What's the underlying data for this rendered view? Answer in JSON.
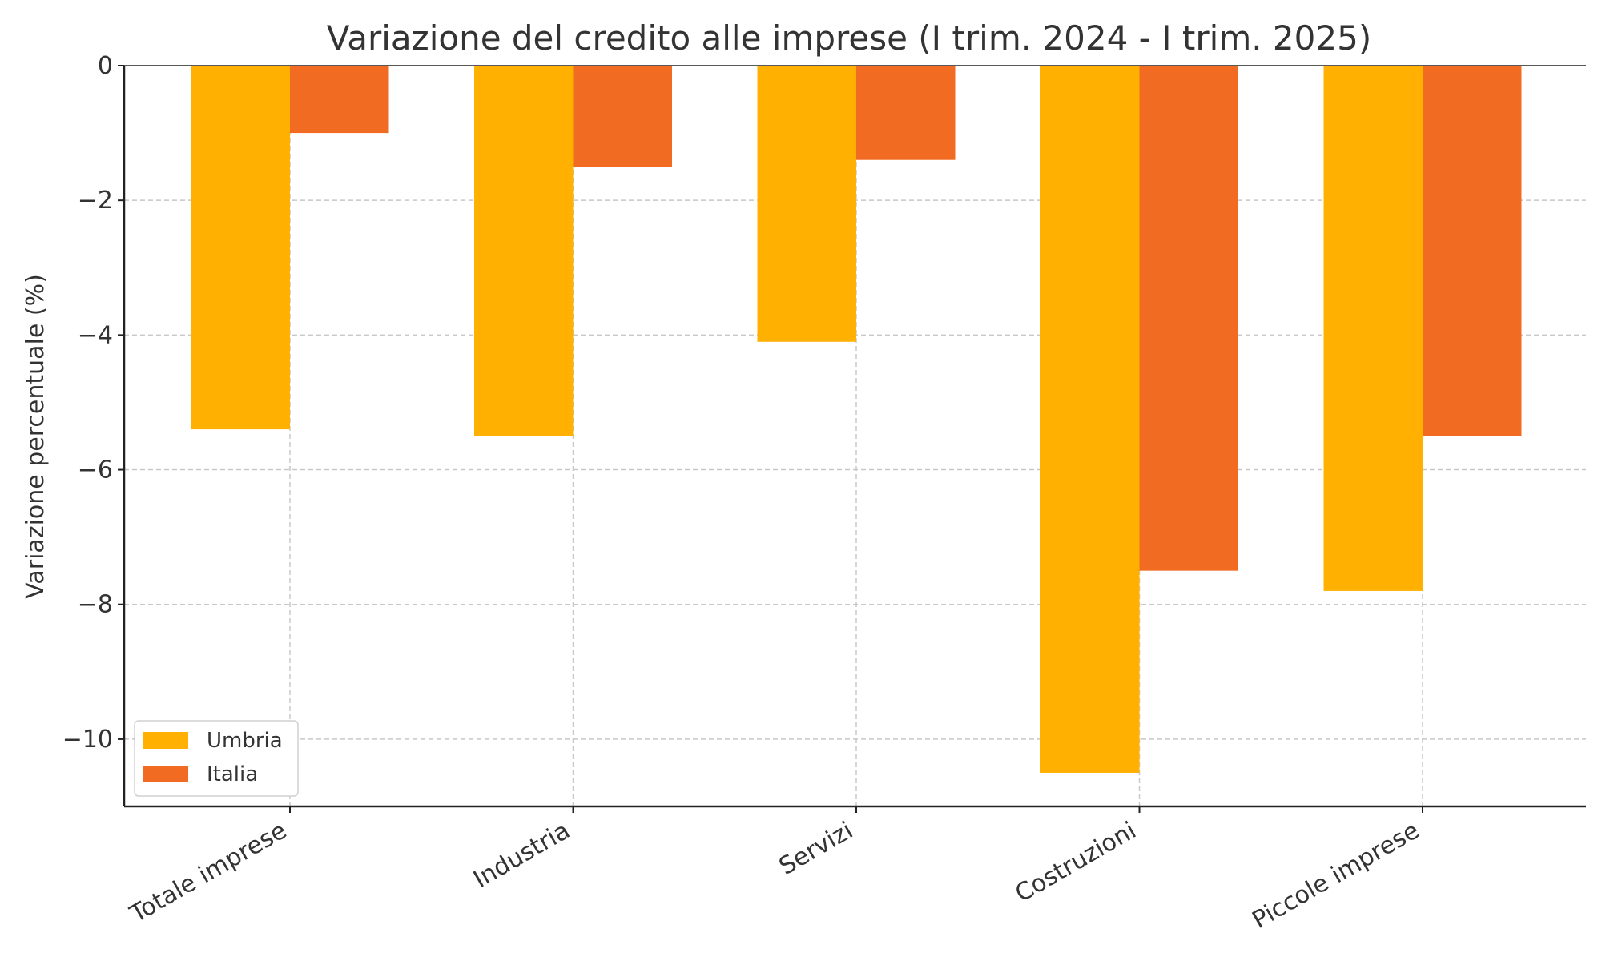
{
  "chart_data": {
    "type": "bar",
    "title": "Variazione del credito alle imprese (I trim. 2024 - I trim. 2025)",
    "xlabel": "",
    "ylabel": "Variazione percentuale (%)",
    "categories": [
      "Totale imprese",
      "Industria",
      "Servizi",
      "Costruzioni",
      "Piccole imprese"
    ],
    "series": [
      {
        "name": "Umbria",
        "color": "#FFB000",
        "values": [
          -5.4,
          -5.5,
          -4.1,
          -10.5,
          -7.8
        ]
      },
      {
        "name": "Italia",
        "color": "#F26B22",
        "values": [
          -1.0,
          -1.5,
          -1.4,
          -7.5,
          -5.5
        ]
      }
    ],
    "ylim": [
      -11,
      0
    ],
    "yticks": [
      0,
      -2,
      -4,
      -6,
      -8,
      -10
    ],
    "ytick_labels": [
      "0",
      "−2",
      "−4",
      "−6",
      "−8",
      "−10"
    ],
    "grid": true,
    "legend_position": "lower-left"
  }
}
